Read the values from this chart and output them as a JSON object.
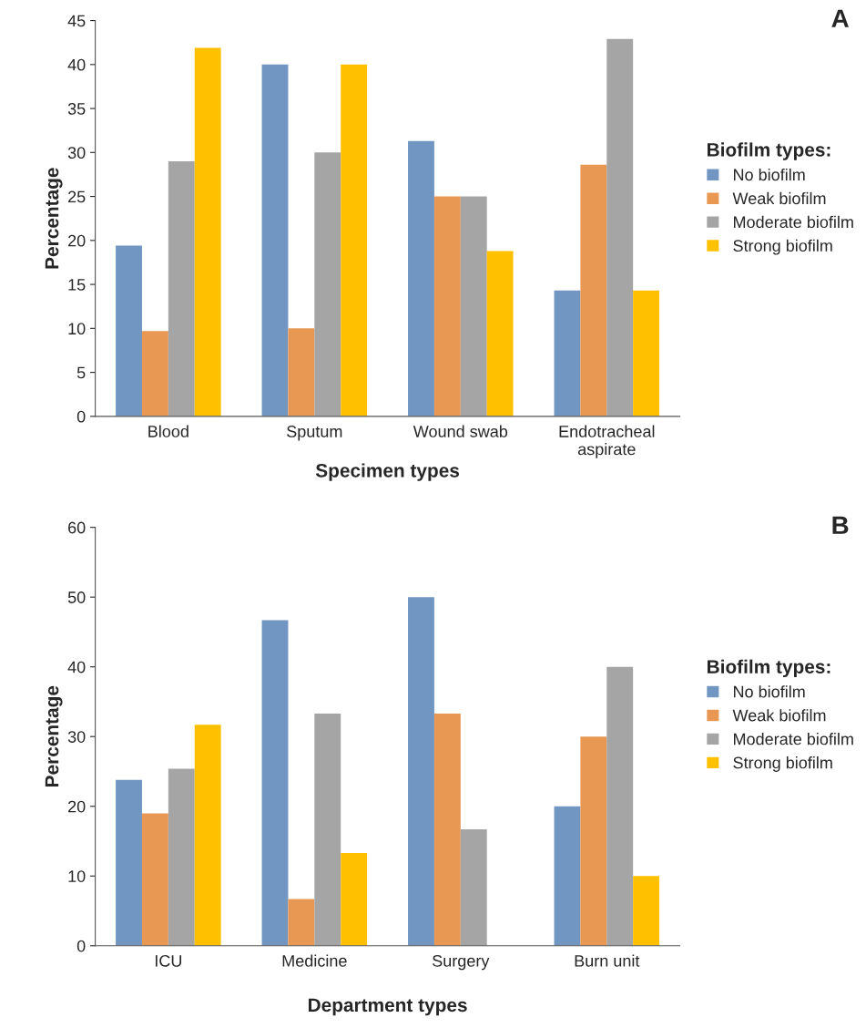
{
  "chart_data": [
    {
      "type": "bar",
      "xlabel": "Specimen types",
      "ylabel": "Percentage",
      "legend_title": "Biofilm types:",
      "legend": "right",
      "annotations": [
        "A"
      ],
      "categories": [
        "Blood",
        "Sputum",
        "Wound swab",
        "Endotracheal\naspirate"
      ],
      "ylim": [
        0,
        45
      ],
      "yticks": [
        0,
        5,
        10,
        15,
        20,
        25,
        30,
        35,
        40,
        45
      ],
      "grid": false,
      "series": [
        {
          "name": "No biofilm",
          "color": "#7196c2",
          "values": [
            19.4,
            40,
            31.3,
            14.3
          ]
        },
        {
          "name": "Weak biofilm",
          "color": "#e99853",
          "values": [
            9.7,
            10,
            25,
            28.6
          ]
        },
        {
          "name": "Moderate biofilm",
          "color": "#a5a5a5",
          "values": [
            29,
            30,
            25,
            42.9
          ]
        },
        {
          "name": "Strong biofilm",
          "color": "#ffc000",
          "values": [
            41.9,
            40,
            18.8,
            14.3
          ]
        }
      ]
    },
    {
      "type": "bar",
      "xlabel": "Department types",
      "ylabel": "Percentage",
      "legend_title": "Biofilm types:",
      "legend": "right",
      "annotations": [
        "B"
      ],
      "categories": [
        "ICU",
        "Medicine",
        "Surgery",
        "Burn unit"
      ],
      "ylim": [
        0,
        60
      ],
      "yticks": [
        0,
        10,
        20,
        30,
        40,
        50,
        60
      ],
      "grid": false,
      "series": [
        {
          "name": "No biofilm",
          "color": "#7196c2",
          "values": [
            23.8,
            46.7,
            50,
            20
          ]
        },
        {
          "name": "Weak biofilm",
          "color": "#e99853",
          "values": [
            19,
            6.7,
            33.3,
            30
          ]
        },
        {
          "name": "Moderate biofilm",
          "color": "#a5a5a5",
          "values": [
            25.4,
            33.3,
            16.7,
            40
          ]
        },
        {
          "name": "Strong biofilm",
          "color": "#ffc000",
          "values": [
            31.7,
            13.3,
            null,
            10
          ]
        }
      ]
    }
  ]
}
